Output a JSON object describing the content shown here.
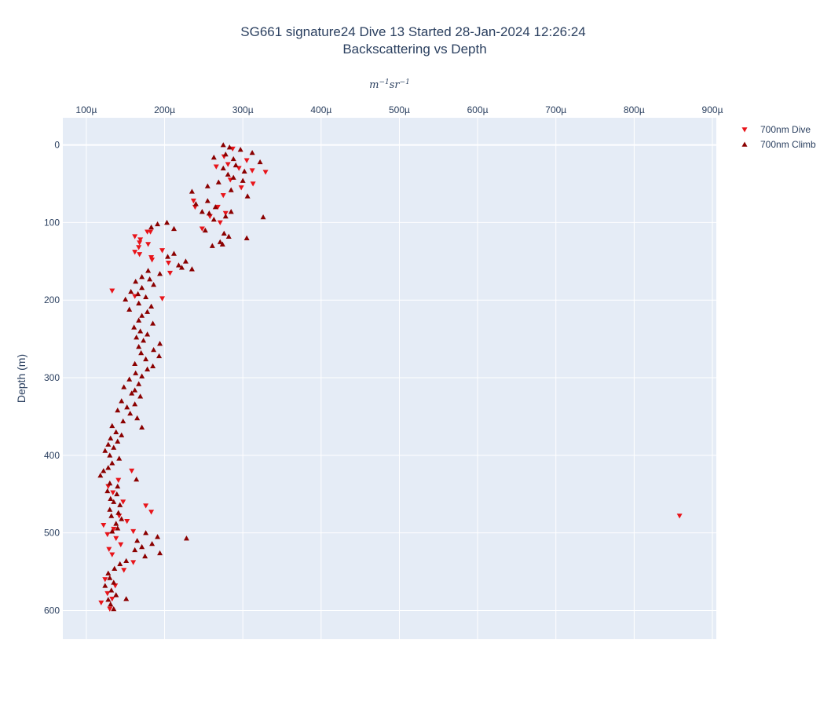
{
  "chart_data": {
    "type": "scatter",
    "title": "SG661 signature24 Dive 13 Started 28-Jan-2024 12:26:24",
    "subtitle": "Backscattering vs Depth",
    "xlabel_base": "m",
    "xlabel_exp1": "−1",
    "xlabel_mid": "sr",
    "xlabel_exp2": "−1",
    "ylabel": "Depth (m)",
    "xaxis_side": "top",
    "yaxis_reversed": true,
    "xlim": [
      7e-05,
      0.000905
    ],
    "ylim": [
      637,
      -35
    ],
    "grid": true,
    "legend_position": "top-right",
    "xticks": [
      {
        "value": 0.0001,
        "label": "100µ"
      },
      {
        "value": 0.0002,
        "label": "200µ"
      },
      {
        "value": 0.0003,
        "label": "300µ"
      },
      {
        "value": 0.0004,
        "label": "400µ"
      },
      {
        "value": 0.0005,
        "label": "500µ"
      },
      {
        "value": 0.0006,
        "label": "600µ"
      },
      {
        "value": 0.0007,
        "label": "700µ"
      },
      {
        "value": 0.0008,
        "label": "800µ"
      },
      {
        "value": 0.0009,
        "label": "900µ"
      }
    ],
    "yticks": [
      {
        "value": 0,
        "label": "0"
      },
      {
        "value": 100,
        "label": "100"
      },
      {
        "value": 200,
        "label": "200"
      },
      {
        "value": 300,
        "label": "300"
      },
      {
        "value": 400,
        "label": "400"
      },
      {
        "value": 500,
        "label": "500"
      },
      {
        "value": 600,
        "label": "600"
      }
    ],
    "series": [
      {
        "name": "700nm Dive",
        "marker": "triangle-down",
        "color": "#e8141a",
        "points": [
          [
            0.000287,
            5
          ],
          [
            0.000276,
            15
          ],
          [
            0.000305,
            20
          ],
          [
            0.000281,
            25
          ],
          [
            0.000295,
            30
          ],
          [
            0.000266,
            28
          ],
          [
            0.000312,
            33
          ],
          [
            0.000329,
            35
          ],
          [
            0.000284,
            45
          ],
          [
            0.000313,
            50
          ],
          [
            0.000298,
            55
          ],
          [
            0.000275,
            65
          ],
          [
            0.000237,
            72
          ],
          [
            0.000268,
            80
          ],
          [
            0.000239,
            80
          ],
          [
            0.000278,
            88
          ],
          [
            0.000258,
            92
          ],
          [
            0.000271,
            100
          ],
          [
            0.000248,
            108
          ],
          [
            0.000178,
            112
          ],
          [
            0.000162,
            118
          ],
          [
            0.000169,
            122
          ],
          [
            0.000168,
            126
          ],
          [
            0.000179,
            128
          ],
          [
            0.000167,
            132
          ],
          [
            0.000197,
            136
          ],
          [
            0.000162,
            138
          ],
          [
            0.000168,
            141
          ],
          [
            0.000183,
            145
          ],
          [
            0.000184,
            148
          ],
          [
            0.000205,
            152
          ],
          [
            0.000207,
            165
          ],
          [
            0.000133,
            188
          ],
          [
            0.000162,
            195
          ],
          [
            0.000197,
            198
          ],
          [
            0.000182,
            112
          ],
          [
            0.000158,
            420
          ],
          [
            0.000141,
            432
          ],
          [
            0.000128,
            440
          ],
          [
            0.000134,
            448
          ],
          [
            0.000147,
            460
          ],
          [
            0.000176,
            465
          ],
          [
            0.000183,
            473
          ],
          [
            0.000142,
            478
          ],
          [
            0.000152,
            485
          ],
          [
            0.000122,
            490
          ],
          [
            0.000135,
            495
          ],
          [
            0.00016,
            498
          ],
          [
            0.000127,
            502
          ],
          [
            0.000138,
            507
          ],
          [
            0.000144,
            515
          ],
          [
            0.000129,
            521
          ],
          [
            0.000133,
            528
          ],
          [
            0.00016,
            538
          ],
          [
            0.000148,
            548
          ],
          [
            0.000124,
            560
          ],
          [
            0.000137,
            568
          ],
          [
            0.000127,
            578
          ],
          [
            0.000133,
            585
          ],
          [
            0.000119,
            590
          ],
          [
            0.00013,
            598
          ],
          [
            0.000858,
            478
          ]
        ]
      },
      {
        "name": "700nm Climb",
        "marker": "triangle-up",
        "color": "#8b0000",
        "points": [
          [
            0.000275,
            0
          ],
          [
            0.000283,
            3
          ],
          [
            0.000297,
            6
          ],
          [
            0.000312,
            10
          ],
          [
            0.000278,
            12
          ],
          [
            0.000263,
            16
          ],
          [
            0.000288,
            18
          ],
          [
            0.000322,
            22
          ],
          [
            0.000291,
            26
          ],
          [
            0.000275,
            30
          ],
          [
            0.000302,
            34
          ],
          [
            0.000281,
            38
          ],
          [
            0.000288,
            42
          ],
          [
            0.0003,
            46
          ],
          [
            0.000269,
            48
          ],
          [
            0.000255,
            53
          ],
          [
            0.000285,
            58
          ],
          [
            0.000235,
            60
          ],
          [
            0.000306,
            66
          ],
          [
            0.000255,
            72
          ],
          [
            0.00024,
            76
          ],
          [
            0.000265,
            80
          ],
          [
            0.000248,
            86
          ],
          [
            0.000285,
            86
          ],
          [
            0.000257,
            88
          ],
          [
            0.000278,
            92
          ],
          [
            0.000326,
            93
          ],
          [
            0.000263,
            96
          ],
          [
            0.000203,
            100
          ],
          [
            0.000191,
            102
          ],
          [
            0.000183,
            106
          ],
          [
            0.000212,
            108
          ],
          [
            0.000252,
            110
          ],
          [
            0.000276,
            114
          ],
          [
            0.000282,
            118
          ],
          [
            0.000305,
            120
          ],
          [
            0.000271,
            125
          ],
          [
            0.000261,
            130
          ],
          [
            0.000274,
            128
          ],
          [
            0.000212,
            140
          ],
          [
            0.000204,
            144
          ],
          [
            0.000227,
            150
          ],
          [
            0.000218,
            155
          ],
          [
            0.000222,
            158
          ],
          [
            0.000235,
            160
          ],
          [
            0.000179,
            162
          ],
          [
            0.000194,
            166
          ],
          [
            0.000171,
            170
          ],
          [
            0.000181,
            173
          ],
          [
            0.000163,
            176
          ],
          [
            0.000186,
            180
          ],
          [
            0.000171,
            184
          ],
          [
            0.000157,
            189
          ],
          [
            0.000166,
            192
          ],
          [
            0.000176,
            196
          ],
          [
            0.00015,
            199
          ],
          [
            0.000167,
            204
          ],
          [
            0.000183,
            208
          ],
          [
            0.000155,
            212
          ],
          [
            0.000178,
            215
          ],
          [
            0.000171,
            220
          ],
          [
            0.000167,
            226
          ],
          [
            0.000185,
            230
          ],
          [
            0.000161,
            235
          ],
          [
            0.000169,
            240
          ],
          [
            0.000178,
            244
          ],
          [
            0.000164,
            248
          ],
          [
            0.000173,
            252
          ],
          [
            0.000194,
            256
          ],
          [
            0.000167,
            260
          ],
          [
            0.000186,
            264
          ],
          [
            0.00017,
            268
          ],
          [
            0.000193,
            272
          ],
          [
            0.000176,
            276
          ],
          [
            0.000162,
            282
          ],
          [
            0.000185,
            285
          ],
          [
            0.000178,
            289
          ],
          [
            0.000163,
            294
          ],
          [
            0.000171,
            298
          ],
          [
            0.000155,
            302
          ],
          [
            0.000167,
            308
          ],
          [
            0.000148,
            312
          ],
          [
            0.000162,
            316
          ],
          [
            0.000158,
            320
          ],
          [
            0.000169,
            324
          ],
          [
            0.000145,
            330
          ],
          [
            0.000162,
            334
          ],
          [
            0.000152,
            338
          ],
          [
            0.00014,
            342
          ],
          [
            0.000156,
            346
          ],
          [
            0.000165,
            352
          ],
          [
            0.000147,
            356
          ],
          [
            0.000133,
            362
          ],
          [
            0.000171,
            364
          ],
          [
            0.000138,
            370
          ],
          [
            0.000145,
            374
          ],
          [
            0.000131,
            378
          ],
          [
            0.00014,
            382
          ],
          [
            0.000128,
            386
          ],
          [
            0.000135,
            390
          ],
          [
            0.000124,
            394
          ],
          [
            0.00013,
            400
          ],
          [
            0.000142,
            404
          ],
          [
            0.000133,
            410
          ],
          [
            0.000128,
            416
          ],
          [
            0.000122,
            420
          ],
          [
            0.000118,
            426
          ],
          [
            0.000164,
            431
          ],
          [
            0.00013,
            436
          ],
          [
            0.00014,
            440
          ],
          [
            0.000127,
            446
          ],
          [
            0.000139,
            450
          ],
          [
            0.000131,
            456
          ],
          [
            0.000135,
            460
          ],
          [
            0.000143,
            464
          ],
          [
            0.00013,
            470
          ],
          [
            0.000141,
            474
          ],
          [
            0.000132,
            478
          ],
          [
            0.000145,
            482
          ],
          [
            0.000138,
            488
          ],
          [
            0.00014,
            494
          ],
          [
            0.000133,
            498
          ],
          [
            0.000176,
            500
          ],
          [
            0.000191,
            505
          ],
          [
            0.000228,
            507
          ],
          [
            0.000165,
            510
          ],
          [
            0.000184,
            514
          ],
          [
            0.000171,
            518
          ],
          [
            0.000162,
            522
          ],
          [
            0.000194,
            526
          ],
          [
            0.000175,
            530
          ],
          [
            0.000151,
            536
          ],
          [
            0.000143,
            540
          ],
          [
            0.000136,
            546
          ],
          [
            0.000128,
            552
          ],
          [
            0.00013,
            558
          ],
          [
            0.000135,
            564
          ],
          [
            0.000124,
            568
          ],
          [
            0.000132,
            574
          ],
          [
            0.000138,
            580
          ],
          [
            0.000128,
            586
          ],
          [
            0.000151,
            585
          ],
          [
            0.000131,
            592
          ],
          [
            0.000135,
            598
          ]
        ]
      }
    ]
  }
}
